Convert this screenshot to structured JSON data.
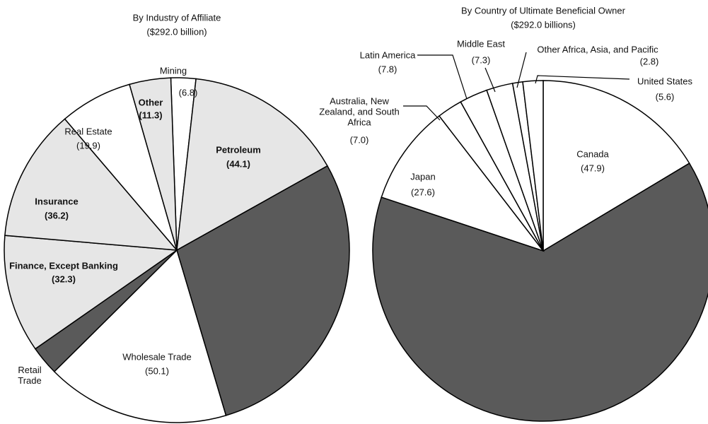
{
  "chart_data": [
    {
      "type": "pie",
      "title": "By Industry of Affiliate",
      "subtitle": "($292.0 billion)",
      "categories": [
        "Mining",
        "Petroleum",
        null,
        "Wholesale Trade",
        "Retail Trade",
        "Finance, Except Banking",
        "Insurance",
        "Real Estate",
        "Other"
      ],
      "values": [
        6.8,
        44.1,
        83.3,
        50.1,
        8.0,
        32.3,
        36.2,
        19.9,
        11.3
      ],
      "value_labels": [
        "(6.8)",
        "(44.1)",
        null,
        "(50.1)",
        null,
        "(32.3)",
        "(36.2)",
        "(19.9)",
        "(11.3)"
      ],
      "colors": [
        "#ffffff",
        "#e6e6e6",
        "#5a5a5a",
        "#ffffff",
        "#5a5a5a",
        "#e6e6e6",
        "#e6e6e6",
        "#ffffff",
        "#e6e6e6"
      ]
    },
    {
      "type": "pie",
      "title": "By Country of Ultimate Beneficial Owner",
      "subtitle": "($292.0 billions)",
      "categories": [
        "Canada",
        null,
        "Japan",
        "Australia, New Zealand, and South Africa",
        "Latin America",
        "Middle East",
        "Other Africa, Asia, and Pacific",
        "United States"
      ],
      "values": [
        47.9,
        186.0,
        27.6,
        7.0,
        7.8,
        7.3,
        2.8,
        5.6
      ],
      "value_labels": [
        "(47.9)",
        null,
        "(27.6)",
        "(7.0)",
        "(7.8)",
        "(7.3)",
        "(2.8)",
        "(5.6)"
      ],
      "colors": [
        "#ffffff",
        "#5a5a5a",
        "#ffffff",
        "#ffffff",
        "#ffffff",
        "#ffffff",
        "#ffffff",
        "#ffffff"
      ]
    }
  ]
}
